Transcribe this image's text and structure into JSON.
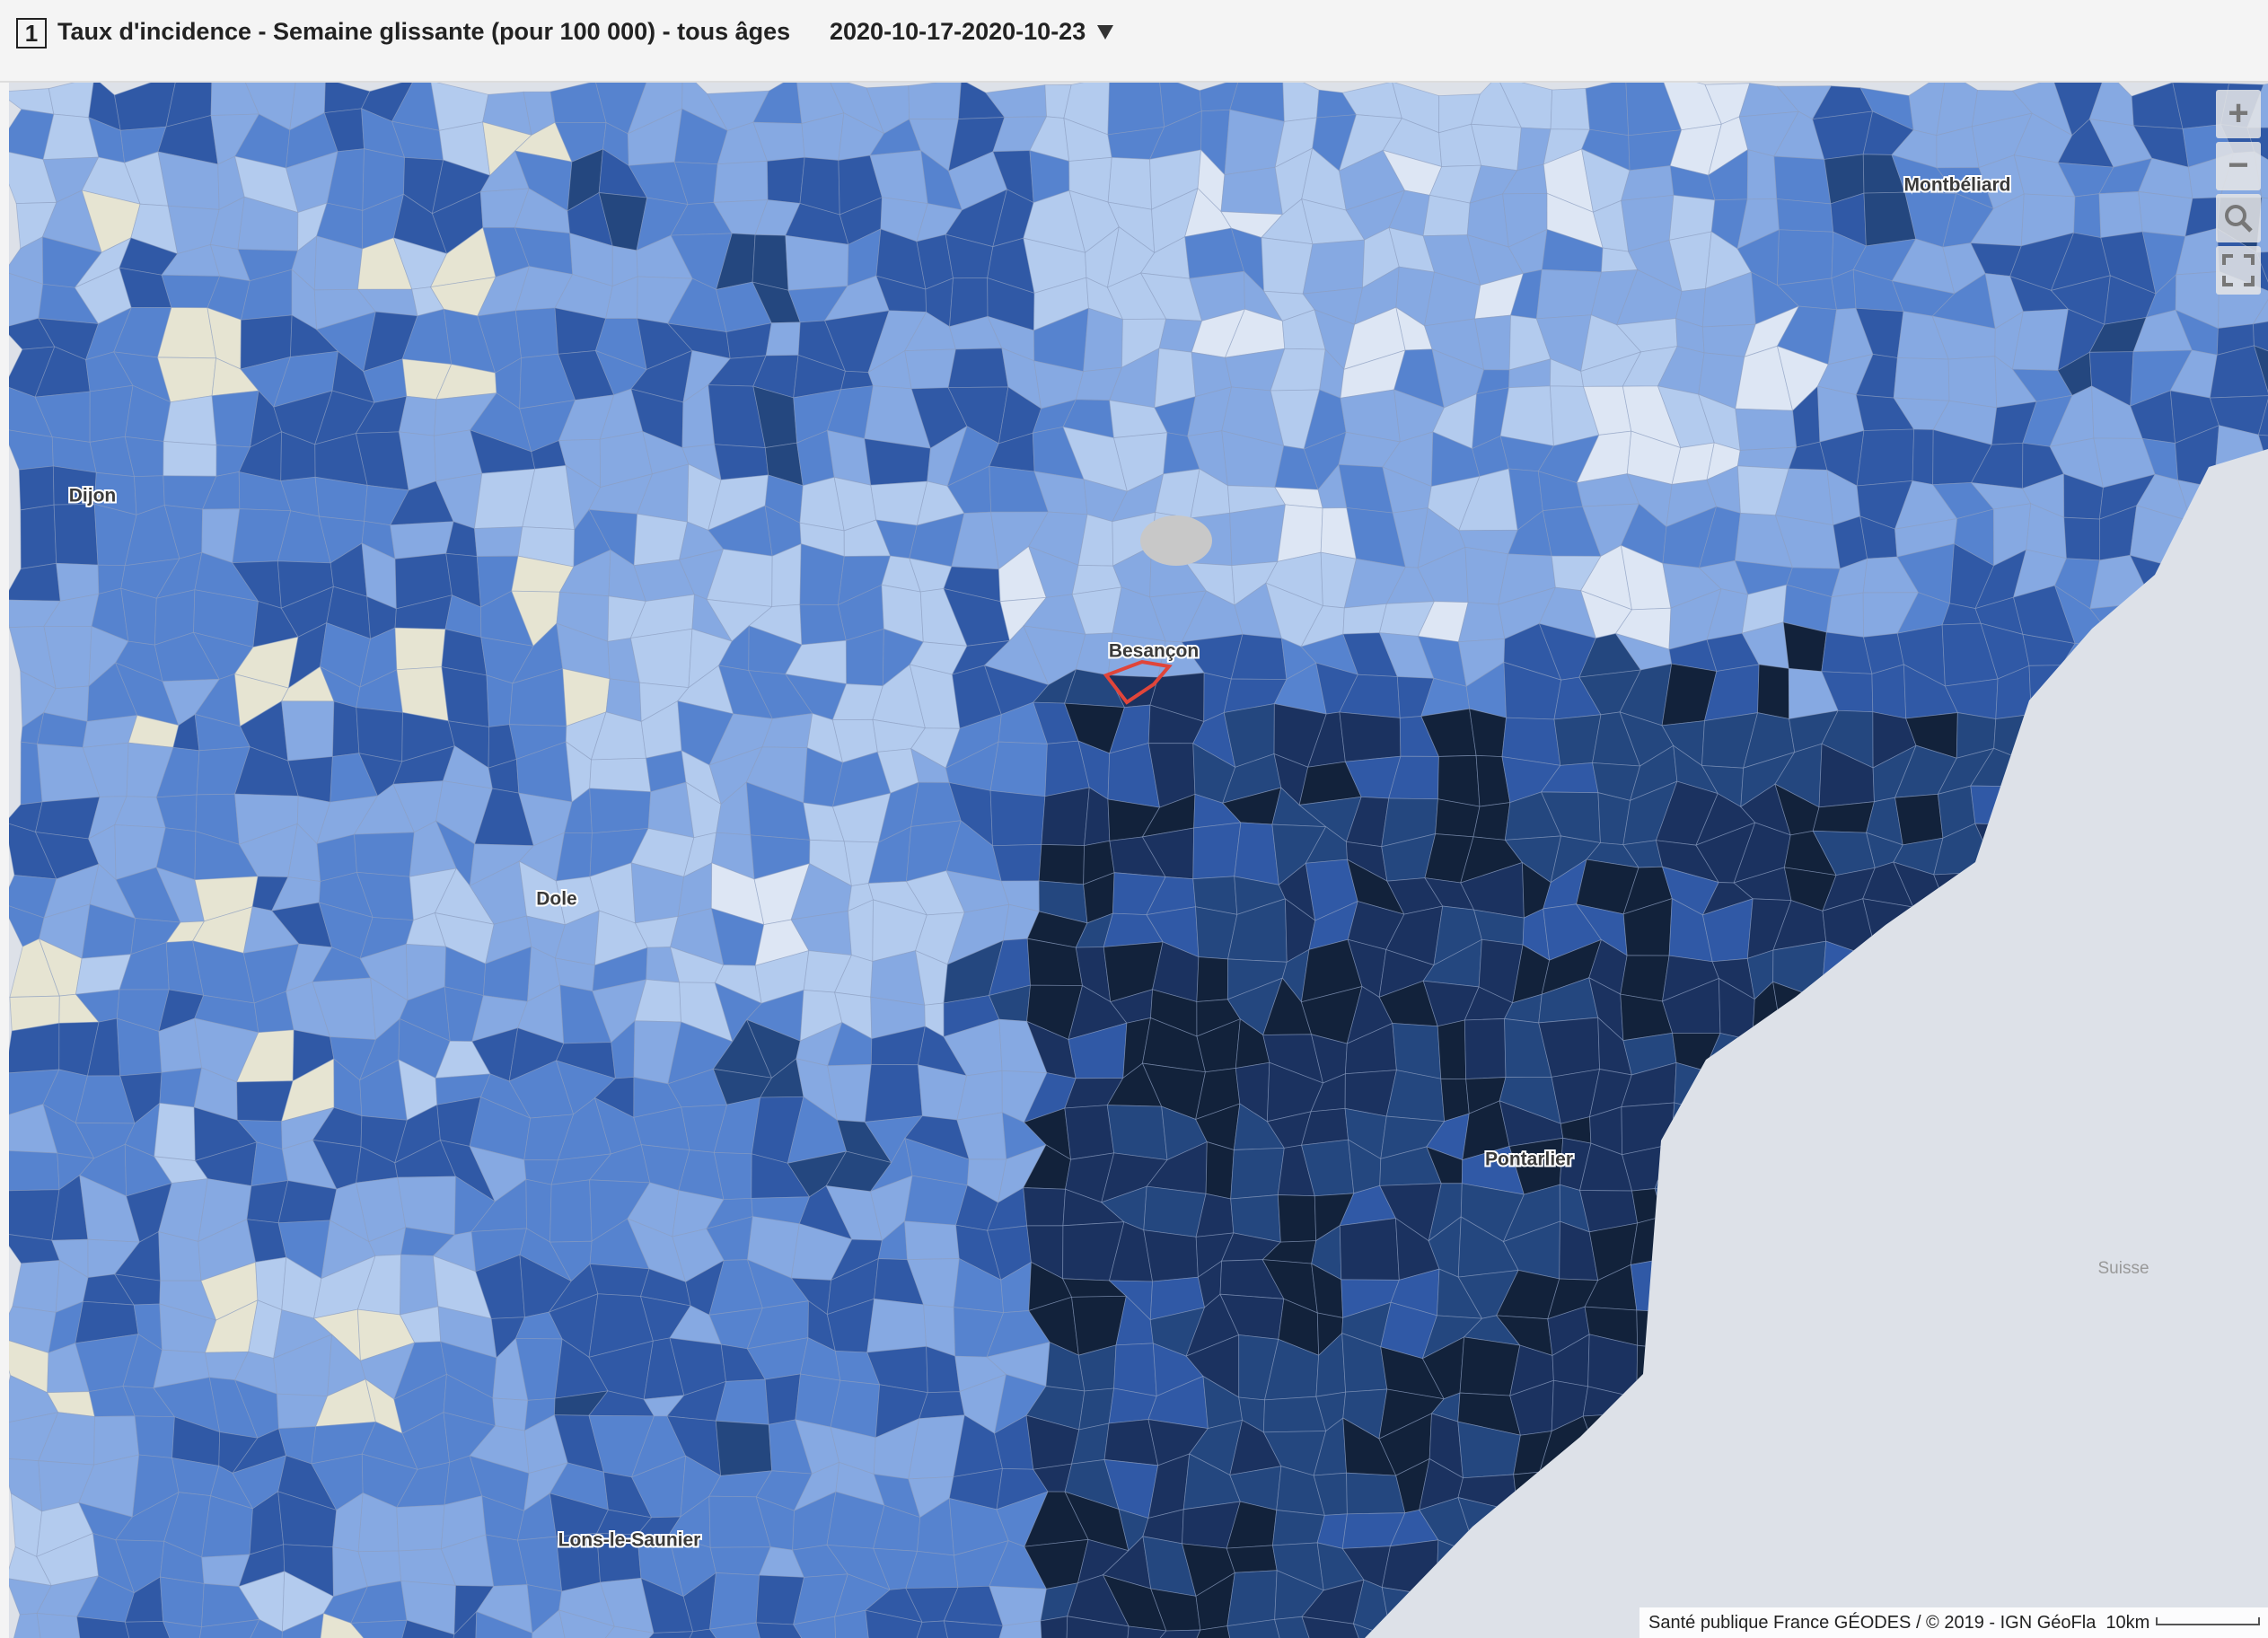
{
  "header": {
    "index": "1",
    "title": "Taux d'incidence - Semaine glissante (pour 100 000) - tous âges",
    "period": "2020-10-17-2020-10-23"
  },
  "places": [
    "Montbéliard",
    "Dijon",
    "Besançon",
    "Dole",
    "Pontarlier",
    "Lons-le-Saunier",
    "Suisse"
  ],
  "controls": [
    "+",
    "−"
  ],
  "attribution": "Santé publique France GÉODES / © 2019 - IGN GéoFla",
  "scale": "10km"
}
